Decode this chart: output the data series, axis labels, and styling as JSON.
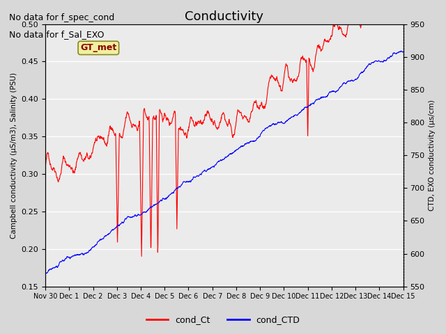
{
  "title": "Conductivity",
  "title_fontsize": 13,
  "annotations": [
    "No data for f_spec_cond",
    "No data for f_Sal_EXO"
  ],
  "annotation_fontsize": 9,
  "gt_met_label": "GT_met",
  "ylabel_left": "Campbell conductivity (µS/m3), Salinity (PSU)",
  "ylabel_right": "CTD, EXO conductivity (µs/cm)",
  "ylim_left": [
    0.15,
    0.5
  ],
  "ylim_right": [
    550,
    950
  ],
  "yticks_left": [
    0.15,
    0.2,
    0.25,
    0.3,
    0.35,
    0.4,
    0.45,
    0.5
  ],
  "yticks_right": [
    550,
    600,
    650,
    700,
    750,
    800,
    850,
    900,
    950
  ],
  "xtick_labels": [
    "Nov 30",
    "Dec 1",
    "Dec 2",
    "Dec 3",
    "Dec 4",
    "Dec 5",
    "Dec 6",
    "Dec 7",
    "Dec 8",
    "Dec 9",
    "Dec 10",
    "Dec 11",
    "Dec 12",
    "Dec 13",
    "Dec 14",
    "Dec 15"
  ],
  "legend_labels": [
    "cond_Ct",
    "cond_CTD"
  ],
  "line_width": 0.8,
  "background_color": "#d8d8d8",
  "plot_bg_color": "#ebebeb",
  "grid_color": "#ffffff",
  "seed": 42
}
